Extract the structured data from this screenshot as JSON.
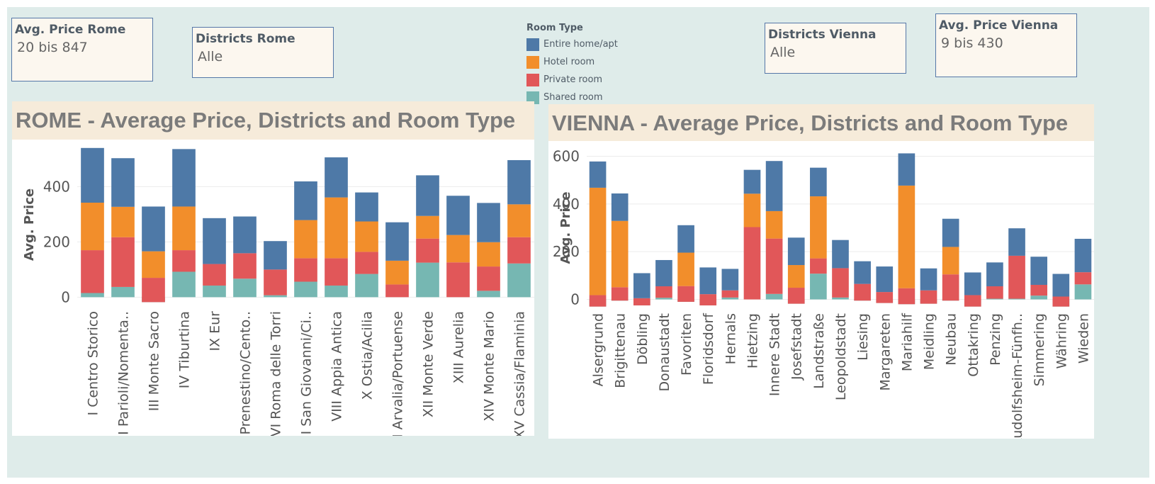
{
  "filters": {
    "rome_price": {
      "title": "Avg. Price Rome",
      "value": "20 bis 847"
    },
    "rome_districts": {
      "title": "Districts Rome",
      "value": "Alle"
    },
    "vienna_districts": {
      "title": "Districts Vienna",
      "value": "Alle"
    },
    "vienna_price": {
      "title": "Avg. Price  Vienna",
      "value": "9 bis 430"
    }
  },
  "legend": {
    "title": "Room Type",
    "items": [
      {
        "label": "Entire home/apt",
        "color": "#4e79a7"
      },
      {
        "label": "Hotel room",
        "color": "#f28e2b"
      },
      {
        "label": "Private room",
        "color": "#e15759"
      },
      {
        "label": "Shared room",
        "color": "#76b7b2"
      }
    ]
  },
  "chart_data": [
    {
      "type": "bar",
      "stacked": true,
      "title": "ROME - Average Price, Districts and Room Type",
      "ylabel": "Avg. Price",
      "xlabel": "",
      "ylim": [
        -35,
        560
      ],
      "yticks": [
        0,
        200,
        400
      ],
      "categories": [
        "I Centro Storico",
        "II Parioli/Nomenta..",
        "III Monte Sacro",
        "IV Tiburtina",
        "IX Eur",
        "V Prenestino/Cento..",
        "VI Roma delle Torri",
        "VII San Giovanni/Ci..",
        "VIII Appia Antica",
        "X Ostia/Acilia",
        "XI Arvalia/Portuense",
        "XII Monte Verde",
        "XIII Aurelia",
        "XIV Monte Mario",
        "XV Cassia/Flaminia"
      ],
      "series": [
        {
          "name": "Shared room",
          "values": [
            15,
            37,
            -18,
            92,
            42,
            67,
            7,
            56,
            42,
            84,
            0,
            125,
            0,
            23,
            122
          ]
        },
        {
          "name": "Private room",
          "values": [
            155,
            180,
            88,
            78,
            78,
            92,
            93,
            85,
            99,
            80,
            46,
            87,
            126,
            88,
            95
          ]
        },
        {
          "name": "Hotel room",
          "values": [
            172,
            110,
            96,
            158,
            0,
            0,
            0,
            138,
            220,
            110,
            86,
            82,
            99,
            88,
            119
          ]
        },
        {
          "name": "Entire home/apt",
          "values": [
            198,
            176,
            162,
            208,
            166,
            133,
            103,
            140,
            145,
            105,
            139,
            147,
            142,
            142,
            160
          ]
        }
      ],
      "grid": true
    },
    {
      "type": "bar",
      "stacked": true,
      "title": "VIENNA - Average Price, Districts and Room Type",
      "ylabel": "Avg. Price",
      "xlabel": "",
      "ylim": [
        -40,
        640
      ],
      "yticks": [
        0,
        200,
        400,
        600
      ],
      "categories": [
        "Alsergrund",
        "Brigittenau",
        "Döbling",
        "Donaustadt",
        "Favoriten",
        "Floridsdorf",
        "Hernals",
        "Hietzing",
        "Innere Stadt",
        "Josefstadt",
        "Landstraße",
        "Leopoldstadt",
        "Liesing",
        "Margareten",
        "Mariahilf",
        "Meidling",
        "Neubau",
        "Ottakring",
        "Penzing",
        "Rudolfsheim-Fünfh..",
        "Simmering",
        "Währing",
        "Wieden"
      ],
      "series": [
        {
          "name": "Shared room",
          "values": [
            -30,
            -5,
            -25,
            7,
            -10,
            -25,
            8,
            0,
            23,
            -18,
            108,
            8,
            -5,
            -15,
            -20,
            -18,
            -5,
            -30,
            3,
            3,
            16,
            -30,
            63
          ]
        },
        {
          "name": "Private room",
          "values": [
            48,
            56,
            30,
            48,
            66,
            47,
            30,
            303,
            232,
            67,
            64,
            123,
            70,
            46,
            67,
            56,
            110,
            48,
            52,
            180,
            45,
            42,
            51
          ]
        },
        {
          "name": "Hotel room",
          "values": [
            450,
            278,
            0,
            0,
            140,
            0,
            0,
            140,
            115,
            95,
            260,
            0,
            0,
            0,
            430,
            0,
            115,
            0,
            0,
            0,
            0,
            0,
            0
          ]
        },
        {
          "name": "Entire home/apt",
          "values": [
            110,
            115,
            105,
            110,
            115,
            112,
            90,
            100,
            210,
            115,
            120,
            118,
            95,
            107,
            135,
            92,
            118,
            95,
            100,
            115,
            118,
            95,
            140
          ]
        }
      ],
      "grid": true
    }
  ]
}
